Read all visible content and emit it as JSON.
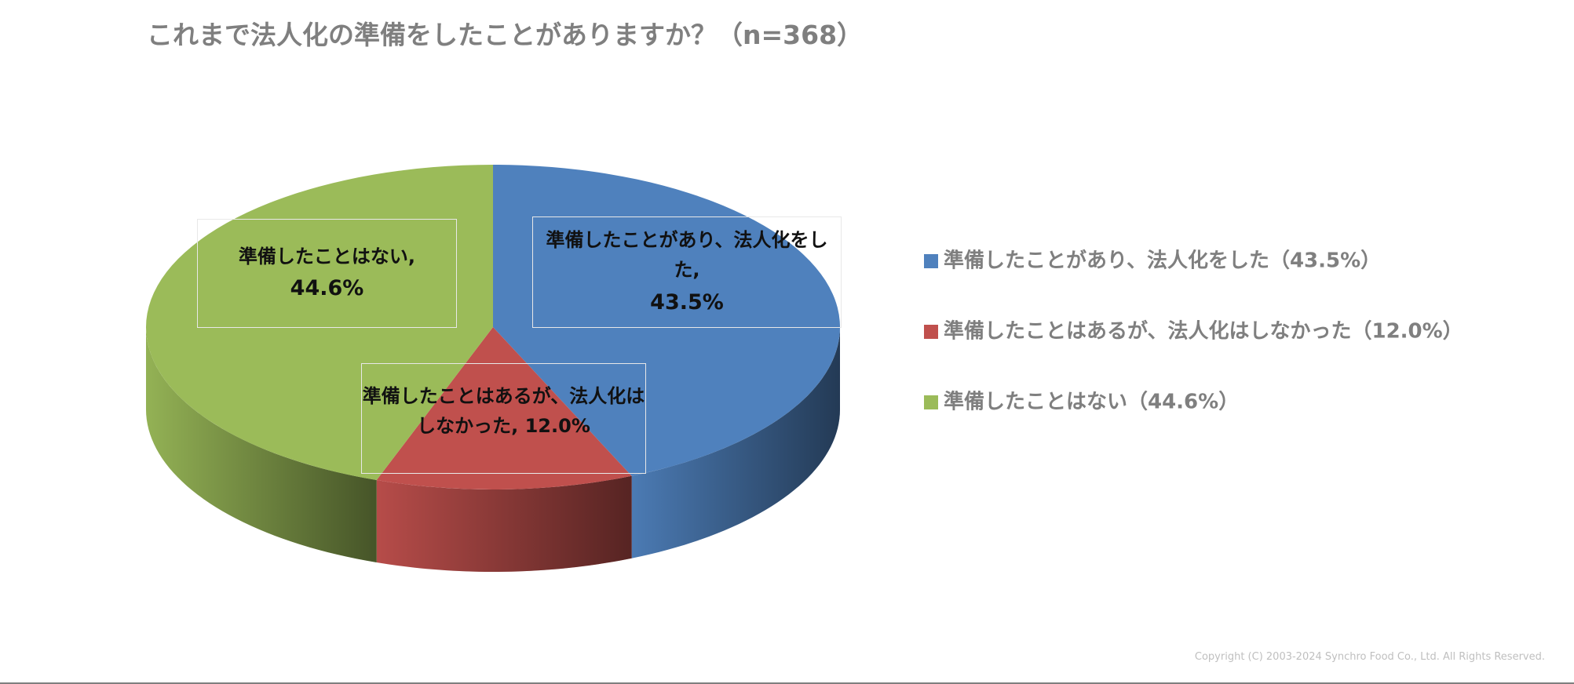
{
  "chart_data": {
    "type": "pie",
    "title": "これまで法人化の準備をしたことがありますか？（n=368）",
    "categories": [
      "準備したことがあり、法人化をした,",
      "準備したことはあるが、法人化はしなかった,",
      "準備したことはない,"
    ],
    "values": [
      43.5,
      12.0,
      44.6
    ],
    "value_labels": [
      "43.5%",
      "12.0%",
      "44.6%"
    ],
    "colors": [
      "#4f81bd",
      "#c0504d",
      "#9bbb59"
    ],
    "legend_labels": [
      "準備したことがあり、法人化をした（43.5%）",
      "準備したことはあるが、法人化はしなかった（12.0%）",
      "準備したことはない（44.6%）"
    ],
    "legend": "right"
  },
  "copyright": "Copyright (C) 2003-2024   Synchro Food Co., Ltd. All Rights Reserved."
}
